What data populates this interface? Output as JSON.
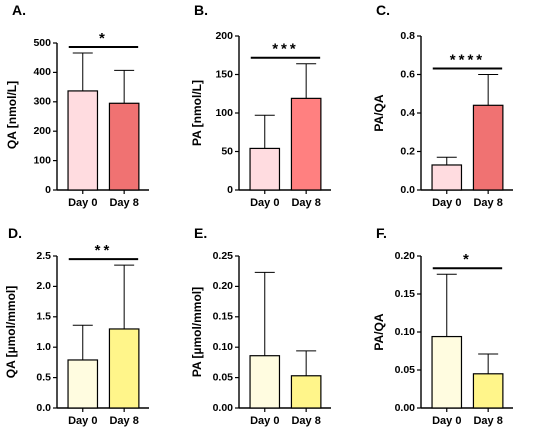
{
  "chart_data": [
    {
      "panel": "A.",
      "type": "bar",
      "ylabel": "QA [nmol/L]",
      "categories": [
        "Day 0",
        "Day 8"
      ],
      "values": [
        337,
        295
      ],
      "errors": [
        129,
        112
      ],
      "ylim": [
        0,
        500
      ],
      "yticks": [
        "0",
        "100",
        "200",
        "300",
        "400",
        "500"
      ],
      "colors": [
        "#FFDCE0",
        "#F07272"
      ],
      "significance": "*"
    },
    {
      "panel": "B.",
      "type": "bar",
      "ylabel": "PA [nmol/L]",
      "categories": [
        "Day 0",
        "Day 8"
      ],
      "values": [
        54,
        119
      ],
      "errors": [
        43,
        45
      ],
      "ylim": [
        0,
        200
      ],
      "yticks": [
        "0",
        "50",
        "100",
        "150",
        "200"
      ],
      "colors": [
        "#FFDCE0",
        "#FF8080"
      ],
      "significance": "***"
    },
    {
      "panel": "C.",
      "type": "bar",
      "ylabel": "PA/QA",
      "categories": [
        "Day 0",
        "Day 8"
      ],
      "values": [
        0.13,
        0.44
      ],
      "errors": [
        0.04,
        0.16
      ],
      "ylim": [
        0,
        0.8
      ],
      "yticks": [
        "0.0",
        "0.2",
        "0.4",
        "0.6",
        "0.8"
      ],
      "colors": [
        "#FFDCE0",
        "#F07272"
      ],
      "significance": "****"
    },
    {
      "panel": "D.",
      "type": "bar",
      "ylabel": "QA [µmol/mmol]",
      "categories": [
        "Day 0",
        "Day 8"
      ],
      "values": [
        0.79,
        1.3
      ],
      "errors": [
        0.57,
        1.05
      ],
      "ylim": [
        0,
        2.5
      ],
      "yticks": [
        "0.0",
        "0.5",
        "1.0",
        "1.5",
        "2.0",
        "2.5"
      ],
      "colors": [
        "#FFFCE0",
        "#FFF58A"
      ],
      "significance": "**"
    },
    {
      "panel": "E.",
      "type": "bar",
      "ylabel": "PA [µmol/mmol]",
      "categories": [
        "Day 0",
        "Day 8"
      ],
      "values": [
        0.086,
        0.053
      ],
      "errors": [
        0.137,
        0.041
      ],
      "ylim": [
        0,
        0.25
      ],
      "yticks": [
        "0.00",
        "0.05",
        "0.10",
        "0.15",
        "0.20",
        "0.25"
      ],
      "colors": [
        "#FFFCE0",
        "#FFF58A"
      ],
      "significance": ""
    },
    {
      "panel": "F.",
      "type": "bar",
      "ylabel": "PA/QA",
      "categories": [
        "Day 0",
        "Day 8"
      ],
      "values": [
        0.094,
        0.045
      ],
      "errors": [
        0.082,
        0.026
      ],
      "ylim": [
        0,
        0.2
      ],
      "yticks": [
        "0.00",
        "0.05",
        "0.10",
        "0.15",
        "0.20"
      ],
      "colors": [
        "#FFFCE0",
        "#FFF58A"
      ],
      "significance": "*"
    }
  ]
}
